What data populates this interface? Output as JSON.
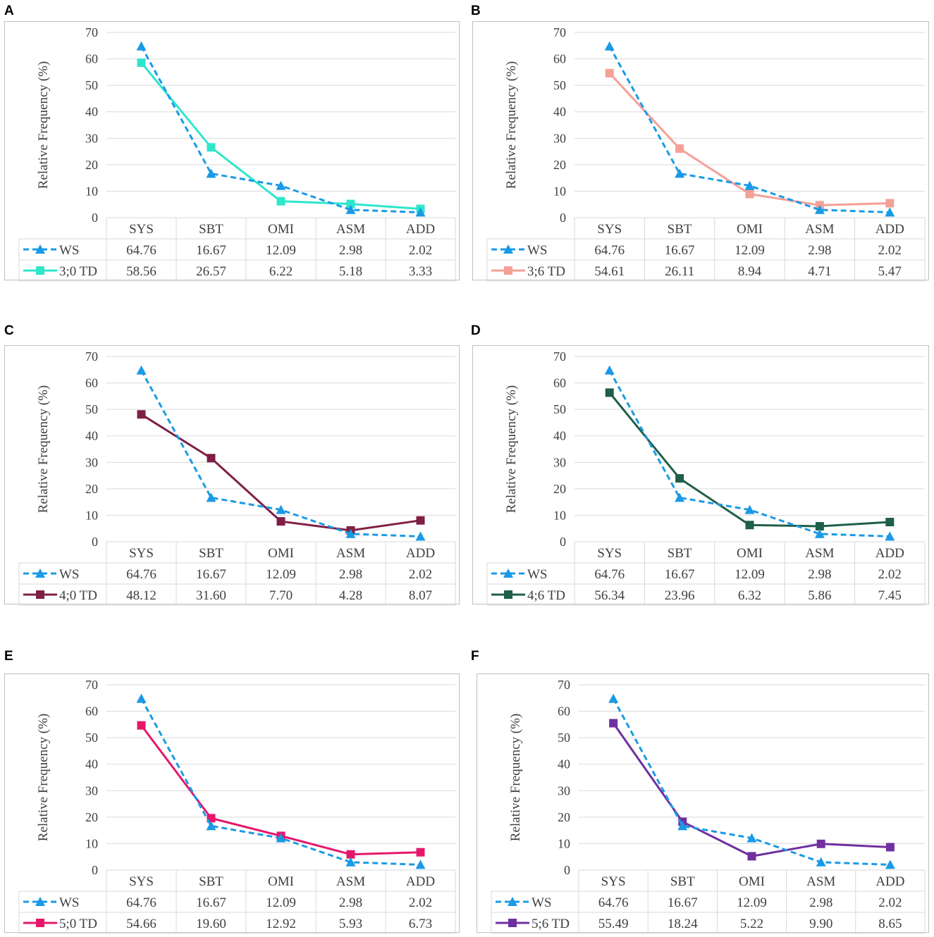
{
  "chart_data": [
    {
      "panel": "A",
      "type": "line",
      "title": "",
      "xlabel": "",
      "ylabel": "Relative Frequency (%)",
      "ylim": [
        0,
        70
      ],
      "yticks": [
        0,
        10,
        20,
        30,
        40,
        50,
        60,
        70
      ],
      "categories": [
        "SYS",
        "SBT",
        "OMI",
        "ASM",
        "ADD"
      ],
      "series": [
        {
          "name": "WS",
          "values": [
            64.76,
            16.67,
            12.09,
            2.98,
            2.02
          ],
          "labels": [
            "64.76",
            "16.67",
            "12.09",
            "2.98",
            "2.02"
          ],
          "color": "#1a9ae6",
          "marker": "triangle",
          "dashed": true
        },
        {
          "name": "3;0 TD",
          "values": [
            58.56,
            26.57,
            6.22,
            5.18,
            3.33
          ],
          "labels": [
            "58.56",
            "26.57",
            "6.22",
            "5.18",
            "3.33"
          ],
          "color": "#2ee6cc",
          "marker": "square",
          "dashed": false
        }
      ]
    },
    {
      "panel": "B",
      "type": "line",
      "title": "",
      "xlabel": "",
      "ylabel": "Relative Frequency (%)",
      "ylim": [
        0,
        70
      ],
      "yticks": [
        0,
        10,
        20,
        30,
        40,
        50,
        60,
        70
      ],
      "categories": [
        "SYS",
        "SBT",
        "OMI",
        "ASM",
        "ADD"
      ],
      "series": [
        {
          "name": "WS",
          "values": [
            64.76,
            16.67,
            12.09,
            2.98,
            2.02
          ],
          "labels": [
            "64.76",
            "16.67",
            "12.09",
            "2.98",
            "2.02"
          ],
          "color": "#1a9ae6",
          "marker": "triangle",
          "dashed": true
        },
        {
          "name": "3;6 TD",
          "values": [
            54.61,
            26.11,
            8.94,
            4.71,
            5.47
          ],
          "labels": [
            "54.61",
            "26.11",
            "8.94",
            "4.71",
            "5.47"
          ],
          "color": "#f5a096",
          "marker": "square",
          "dashed": false
        }
      ]
    },
    {
      "panel": "C",
      "type": "line",
      "title": "",
      "xlabel": "",
      "ylabel": "Relative Frequency (%)",
      "ylim": [
        0,
        70
      ],
      "yticks": [
        0,
        10,
        20,
        30,
        40,
        50,
        60,
        70
      ],
      "categories": [
        "SYS",
        "SBT",
        "OMI",
        "ASM",
        "ADD"
      ],
      "series": [
        {
          "name": "WS",
          "values": [
            64.76,
            16.67,
            12.09,
            2.98,
            2.02
          ],
          "labels": [
            "64.76",
            "16.67",
            "12.09",
            "2.98",
            "2.02"
          ],
          "color": "#1a9ae6",
          "marker": "triangle",
          "dashed": true
        },
        {
          "name": "4;0 TD",
          "values": [
            48.12,
            31.6,
            7.7,
            4.28,
            8.07
          ],
          "labels": [
            "48.12",
            "31.60",
            "7.70",
            "4.28",
            "8.07"
          ],
          "color": "#7f1f45",
          "marker": "square",
          "dashed": false
        }
      ]
    },
    {
      "panel": "D",
      "type": "line",
      "title": "",
      "xlabel": "",
      "ylabel": "Relative Frequency (%)",
      "ylim": [
        0,
        70
      ],
      "yticks": [
        0,
        10,
        20,
        30,
        40,
        50,
        60,
        70
      ],
      "categories": [
        "SYS",
        "SBT",
        "OMI",
        "ASM",
        "ADD"
      ],
      "series": [
        {
          "name": "WS",
          "values": [
            64.76,
            16.67,
            12.09,
            2.98,
            2.02
          ],
          "labels": [
            "64.76",
            "16.67",
            "12.09",
            "2.98",
            "2.02"
          ],
          "color": "#1a9ae6",
          "marker": "triangle",
          "dashed": true
        },
        {
          "name": "4;6 TD",
          "values": [
            56.34,
            23.96,
            6.32,
            5.86,
            7.45
          ],
          "labels": [
            "56.34",
            "23.96",
            "6.32",
            "5.86",
            "7.45"
          ],
          "color": "#1f5e4a",
          "marker": "square",
          "dashed": false
        }
      ]
    },
    {
      "panel": "E",
      "type": "line",
      "title": "",
      "xlabel": "",
      "ylabel": "Relative Frequency (%)",
      "ylim": [
        0,
        70
      ],
      "yticks": [
        0,
        10,
        20,
        30,
        40,
        50,
        60,
        70
      ],
      "categories": [
        "SYS",
        "SBT",
        "OMI",
        "ASM",
        "ADD"
      ],
      "series": [
        {
          "name": "WS",
          "values": [
            64.76,
            16.67,
            12.09,
            2.98,
            2.02
          ],
          "labels": [
            "64.76",
            "16.67",
            "12.09",
            "2.98",
            "2.02"
          ],
          "color": "#1a9ae6",
          "marker": "triangle",
          "dashed": true
        },
        {
          "name": "5;0 TD",
          "values": [
            54.66,
            19.6,
            12.92,
            5.93,
            6.73
          ],
          "labels": [
            "54.66",
            "19.60",
            "12.92",
            "5.93",
            "6.73"
          ],
          "color": "#e6176b",
          "marker": "square",
          "dashed": false
        }
      ]
    },
    {
      "panel": "F",
      "type": "line",
      "title": "",
      "xlabel": "",
      "ylabel": "Relative Frequency (%)",
      "ylim": [
        0,
        70
      ],
      "yticks": [
        0,
        10,
        20,
        30,
        40,
        50,
        60,
        70
      ],
      "categories": [
        "SYS",
        "SBT",
        "OMI",
        "ASM",
        "ADD"
      ],
      "series": [
        {
          "name": "WS",
          "values": [
            64.76,
            16.67,
            12.09,
            2.98,
            2.02
          ],
          "labels": [
            "64.76",
            "16.67",
            "12.09",
            "2.98",
            "2.02"
          ],
          "color": "#1a9ae6",
          "marker": "triangle",
          "dashed": true
        },
        {
          "name": "5;6 TD",
          "values": [
            55.49,
            18.24,
            5.22,
            9.9,
            8.65
          ],
          "labels": [
            "55.49",
            "18.24",
            "5.22",
            "9.90",
            "8.65"
          ],
          "color": "#7030a0",
          "marker": "square",
          "dashed": false
        }
      ]
    }
  ]
}
